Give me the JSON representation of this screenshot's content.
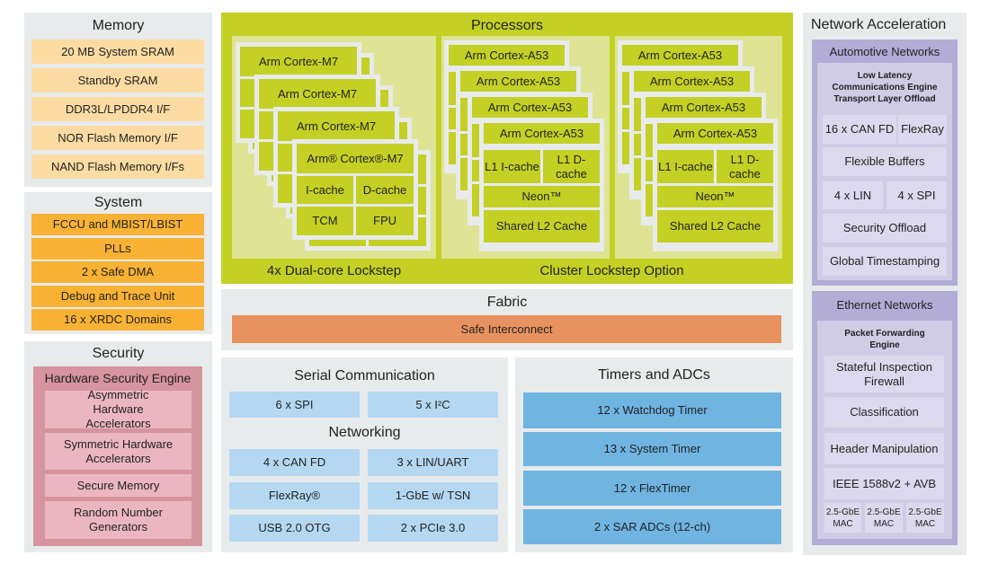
{
  "memory": {
    "title": "Memory",
    "items": [
      "20 MB System SRAM",
      "Standby SRAM",
      "DDR3L/LPDDR4 I/F",
      "NOR Flash Memory I/F",
      "NAND Flash Memory I/Fs"
    ]
  },
  "system": {
    "title": "System",
    "items": [
      "FCCU and MBIST/LBIST",
      "PLLs",
      "2 x Safe DMA",
      "Debug and Trace Unit",
      "16 x XRDC Domains"
    ]
  },
  "security": {
    "title": "Security",
    "engine": "Hardware Security Engine",
    "items": [
      "Asymmetric Hardware Accelerators",
      "Symmetric Hardware Accelerators",
      "Secure Memory",
      "Random Number Generators"
    ]
  },
  "processors": {
    "title": "Processors",
    "m7_label": "4x Dual-core Lockstep",
    "cluster_label": "Cluster Lockstep Option",
    "m7": {
      "name": "Arm Cortex-M7",
      "name_front": "Arm® Cortex®-M7",
      "icache": "I-cache",
      "dcache": "D-cache",
      "tcm": "TCM",
      "fpu": "FPU"
    },
    "a53": {
      "name": "Arm Cortex-A53",
      "l1i": "L1 I-cache",
      "l1d": "L1 D-cache",
      "neon": "Neon™",
      "l2": "Shared L2 Cache"
    }
  },
  "fabric": {
    "title": "Fabric",
    "interconnect": "Safe Interconnect"
  },
  "serial": {
    "title": "Serial Communication",
    "items": [
      "6 x SPI",
      "5 x I²C"
    ],
    "networking_title": "Networking",
    "networking": [
      "4 x CAN FD",
      "3 x LIN/UART",
      "FlexRay®",
      "1-GbE w/ TSN",
      "USB 2.0 OTG",
      "2 x PCIe 3.0"
    ]
  },
  "timers": {
    "title": "Timers and ADCs",
    "items": [
      "12 x Watchdog Timer",
      "13 x System Timer",
      "12 x FlexTimer",
      "2 x SAR ADCs (12-ch)"
    ]
  },
  "netacc": {
    "title": "Network Acceleration",
    "automotive": {
      "title": "Automotive Networks",
      "engine": "Low Latency Communications Engine Transport Layer Offload",
      "items": [
        "16 x CAN FD",
        "FlexRay",
        "Flexible Buffers",
        "4 x LIN",
        "4 x SPI",
        "Security Offload",
        "Global Timestamping"
      ]
    },
    "ethernet": {
      "title": "Ethernet Networks",
      "engine": "Packet Forwarding Engine",
      "items": [
        "Stateful Inspection Firewall",
        "Classification",
        "Header Manipulation",
        "IEEE 1588v2 + AVB",
        "2.5-GbE MAC",
        "2.5-GbE MAC",
        "2.5-GbE MAC"
      ]
    }
  },
  "colors": {
    "processor": "#c4d024",
    "memory": "#fddca3",
    "system": "#f9b233",
    "security": "#d6949e",
    "interconnect": "#e8925f",
    "serial": "#b5d8f2",
    "timers": "#70b4e2",
    "network": "#b2acd6"
  }
}
